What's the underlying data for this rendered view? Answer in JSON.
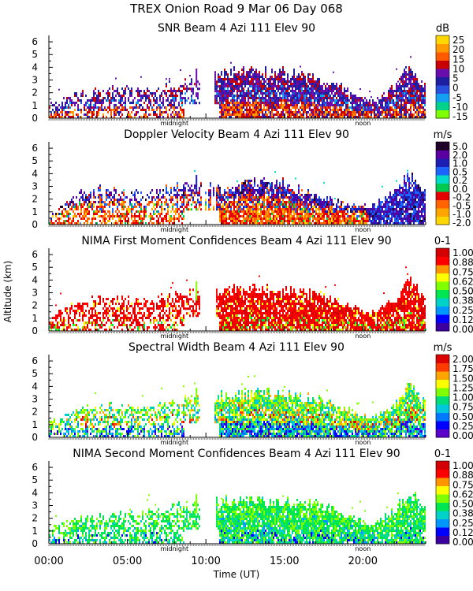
{
  "title": "TREX Onion Road    9 Mar 06 Day 068",
  "ylabel": "Altitude (km)",
  "xlabel": "Time (UT)",
  "x_ticks": [
    "00:00",
    "05:00",
    "10:00",
    "15:00",
    "20:00"
  ],
  "x_tick_hours": [
    0,
    5,
    10,
    15,
    20
  ],
  "x_range_hours": [
    0,
    24
  ],
  "y_ticks": [
    "0",
    "1",
    "2",
    "3",
    "4",
    "5",
    "6"
  ],
  "midnight_label": "midnight",
  "noon_label": "noon",
  "midnight_hour": 8,
  "noon_hour": 20,
  "chart_data": [
    {
      "type": "heatmap",
      "title": "SNR Beam 4 Azi 111 Elev 90",
      "unit": "dB",
      "colorbar_labels": [
        "25",
        "20",
        "15",
        "10",
        "5",
        "0",
        "-5",
        "-10",
        "-15"
      ],
      "ylim": [
        0,
        6.5
      ],
      "xlim_hours": [
        0,
        24
      ],
      "palette": [
        "#7fff00",
        "#00d28c",
        "#14a0f0",
        "#2850dc",
        "#1e1ea0",
        "#6a0dad",
        "#c80000",
        "#ff5a00",
        "#ff9a00",
        "#ffd700"
      ],
      "top_profile": [
        [
          0,
          1.0
        ],
        [
          2,
          1.9
        ],
        [
          4,
          2.3
        ],
        [
          6,
          2.1
        ],
        [
          8,
          2.6
        ],
        [
          10,
          3.0
        ],
        [
          11,
          3.4
        ],
        [
          14,
          3.6
        ],
        [
          17,
          3.1
        ],
        [
          19,
          2.1
        ],
        [
          20.5,
          1.2
        ],
        [
          22,
          2.3
        ],
        [
          22.8,
          3.8
        ],
        [
          24,
          2.5
        ]
      ],
      "weights": [
        [
          0,
          0,
          0,
          0,
          1,
          1,
          3,
          2,
          1,
          0
        ],
        [
          0,
          0,
          1,
          1,
          2,
          2,
          1,
          0,
          0,
          0
        ],
        [
          0,
          0,
          0,
          0,
          3,
          3,
          2,
          0,
          0,
          0
        ]
      ]
    },
    {
      "type": "heatmap",
      "title": "Doppler Velocity Beam 4 Azi 111 Elev 90",
      "unit": "m/s",
      "colorbar_labels": [
        "5.0",
        "2.0",
        "1.0",
        "0.5",
        "0.2",
        "0.0",
        "-0.2",
        "-0.5",
        "-1.0",
        "-2.0"
      ],
      "ylim": [
        0,
        6.5
      ],
      "xlim_hours": [
        0,
        24
      ],
      "palette": [
        "#ffd700",
        "#ffa500",
        "#ff6400",
        "#e60000",
        "#00c850",
        "#00dcc8",
        "#1e64ff",
        "#1e1eb4",
        "#5a00a0",
        "#1e0028"
      ],
      "top_profile": [
        [
          0,
          0.8
        ],
        [
          2,
          2.6
        ],
        [
          4,
          2.6
        ],
        [
          6,
          2.3
        ],
        [
          8,
          2.9
        ],
        [
          10,
          3.0
        ],
        [
          11,
          2.6
        ],
        [
          13,
          3.2
        ],
        [
          15,
          3.1
        ],
        [
          17,
          2.2
        ],
        [
          19,
          1.4
        ],
        [
          20.5,
          1.3
        ],
        [
          22,
          2.4
        ],
        [
          22.8,
          3.9
        ],
        [
          24,
          2.4
        ]
      ],
      "weights": [
        [
          1,
          2,
          4,
          5,
          1,
          0,
          0,
          0,
          0,
          0
        ],
        [
          1,
          1,
          2,
          4,
          1,
          0,
          1,
          1,
          0,
          0
        ],
        [
          0,
          0,
          1,
          1,
          0,
          0,
          2,
          4,
          4,
          1
        ]
      ]
    },
    {
      "type": "heatmap",
      "title": "NIMA First Moment Confidences Beam 4 Azi 111 Elev 90",
      "unit": "0-1",
      "colorbar_labels": [
        "1.00",
        "0.88",
        "0.75",
        "0.62",
        "0.50",
        "0.38",
        "0.25",
        "0.12",
        "0.00"
      ],
      "ylim": [
        0,
        6.5
      ],
      "xlim_hours": [
        0,
        24
      ],
      "palette": [
        "#3c00a0",
        "#0000ff",
        "#0096ff",
        "#00d2c8",
        "#00e650",
        "#7fff00",
        "#ffff00",
        "#ff9600",
        "#ff0000",
        "#d20000"
      ],
      "top_profile": [
        [
          0,
          0.9
        ],
        [
          2,
          2.3
        ],
        [
          4,
          2.6
        ],
        [
          6,
          2.2
        ],
        [
          8,
          2.7
        ],
        [
          10,
          3.0
        ],
        [
          11,
          3.1
        ],
        [
          14,
          3.3
        ],
        [
          17,
          2.8
        ],
        [
          19,
          1.9
        ],
        [
          20.5,
          1.3
        ],
        [
          22,
          2.4
        ],
        [
          22.8,
          4.0
        ],
        [
          24,
          2.5
        ]
      ],
      "weights": [
        [
          0,
          0,
          0,
          0,
          1,
          1,
          1,
          1,
          6,
          3
        ],
        [
          0,
          0,
          0,
          0,
          0,
          0,
          1,
          1,
          8,
          4
        ],
        [
          0,
          0,
          0,
          0,
          0,
          0,
          1,
          0,
          9,
          4
        ]
      ]
    },
    {
      "type": "heatmap",
      "title": "Spectral Width Beam 4 Azi 111 Elev 90",
      "unit": "m/s",
      "colorbar_labels": [
        "2.00",
        "1.75",
        "1.50",
        "1.25",
        "1.00",
        "0.75",
        "0.50",
        "0.25",
        "0.00"
      ],
      "ylim": [
        0,
        6.5
      ],
      "xlim_hours": [
        0,
        24
      ],
      "palette": [
        "#5a00c8",
        "#0000ff",
        "#0078ff",
        "#00c8dc",
        "#00dc78",
        "#7fff00",
        "#ffff00",
        "#ffa500",
        "#ff3c00",
        "#dc0000"
      ],
      "top_profile": [
        [
          0,
          1.1
        ],
        [
          2,
          2.2
        ],
        [
          4,
          2.4
        ],
        [
          6,
          2.2
        ],
        [
          8,
          2.8
        ],
        [
          10,
          3.0
        ],
        [
          11,
          3.2
        ],
        [
          14,
          3.4
        ],
        [
          17,
          3.0
        ],
        [
          19,
          2.0
        ],
        [
          20.5,
          1.3
        ],
        [
          22,
          2.4
        ],
        [
          22.8,
          4.0
        ],
        [
          24,
          2.6
        ]
      ],
      "weights": [
        [
          1,
          2,
          2,
          2,
          2,
          2,
          0,
          0,
          0,
          0
        ],
        [
          0,
          0,
          1,
          2,
          3,
          3,
          2,
          2,
          1,
          1
        ],
        [
          0,
          0,
          0,
          1,
          2,
          3,
          1,
          1,
          0,
          0
        ]
      ]
    },
    {
      "type": "heatmap",
      "title": "NIMA Second Moment Confidences Beam 4 Azi 111 Elev 90",
      "unit": "0-1",
      "colorbar_labels": [
        "1.00",
        "0.88",
        "0.75",
        "0.62",
        "0.50",
        "0.38",
        "0.25",
        "0.12",
        "0.00"
      ],
      "ylim": [
        0,
        6.5
      ],
      "xlim_hours": [
        0,
        24
      ],
      "palette": [
        "#3c00a0",
        "#0000ff",
        "#0096ff",
        "#00d2c8",
        "#00e650",
        "#7fff00",
        "#ffff00",
        "#ff9600",
        "#ff0000",
        "#d20000"
      ],
      "top_profile": [
        [
          0,
          1.2
        ],
        [
          2,
          2.0
        ],
        [
          4,
          2.2
        ],
        [
          6,
          2.3
        ],
        [
          8,
          2.8
        ],
        [
          10,
          3.0
        ],
        [
          11,
          3.2
        ],
        [
          14,
          3.3
        ],
        [
          17,
          3.0
        ],
        [
          19,
          2.1
        ],
        [
          20.5,
          1.3
        ],
        [
          22,
          2.5
        ],
        [
          22.8,
          3.9
        ],
        [
          24,
          2.8
        ]
      ],
      "weights": [
        [
          0,
          1,
          1,
          2,
          5,
          2,
          0,
          0,
          0,
          0
        ],
        [
          0,
          0,
          1,
          2,
          6,
          3,
          0,
          0,
          0,
          0
        ],
        [
          0,
          0,
          0,
          1,
          6,
          4,
          0,
          0,
          0,
          0
        ]
      ]
    }
  ]
}
